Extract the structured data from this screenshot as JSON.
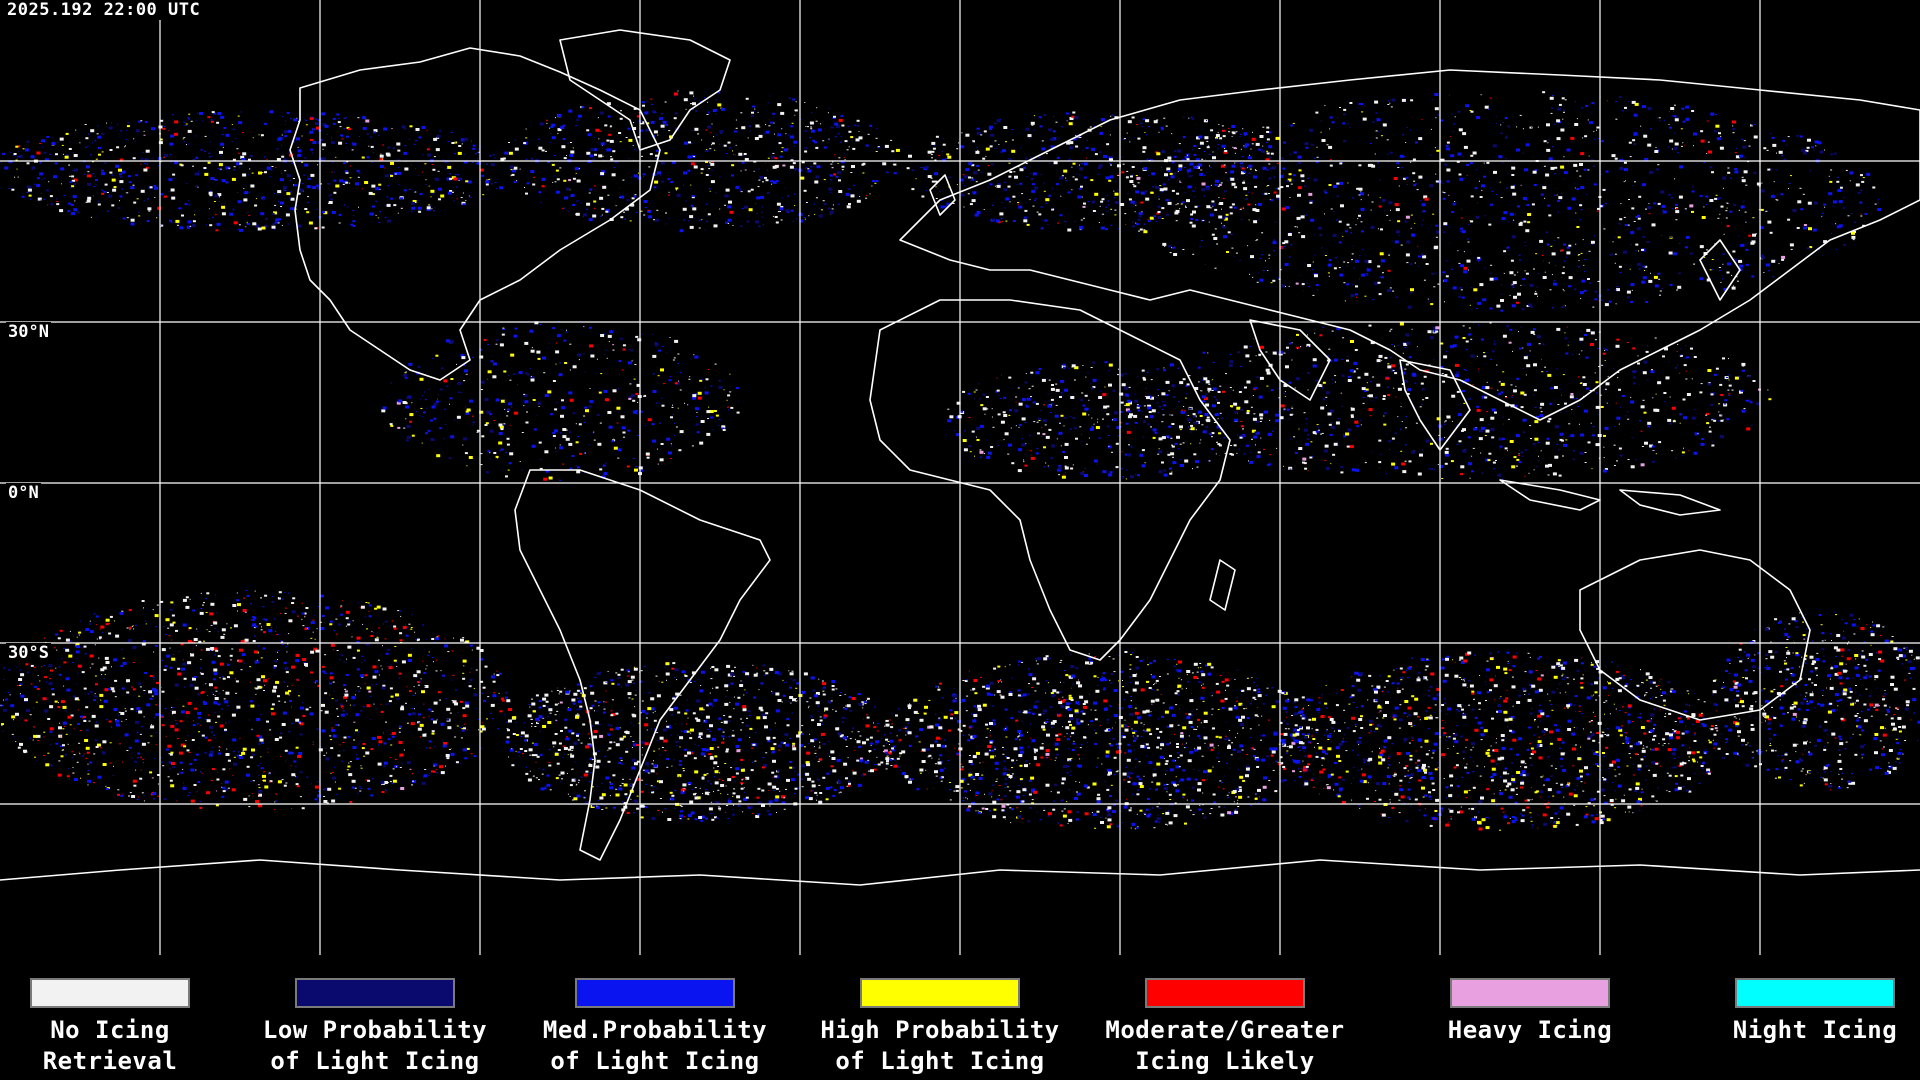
{
  "header": {
    "timestamp": "2025.192 22:00 UTC"
  },
  "latitude_labels": [
    {
      "label": "30°N"
    },
    {
      "label": "0°N"
    },
    {
      "label": "30°S"
    }
  ],
  "legend": {
    "items": [
      {
        "line1": "No Icing",
        "line2": "Retrieval",
        "color": "#f2f2f2"
      },
      {
        "line1": "Low Probability",
        "line2": "of Light Icing",
        "color": "#0a0a6e"
      },
      {
        "line1": "Med.Probability",
        "line2": "of Light Icing",
        "color": "#0a14f0"
      },
      {
        "line1": "High Probability",
        "line2": "of Light Icing",
        "color": "#ffff00"
      },
      {
        "line1": "Moderate/Greater",
        "line2": "Icing Likely",
        "color": "#ff0000"
      },
      {
        "line1": "Heavy Icing",
        "line2": "",
        "color": "#e8a0e0"
      },
      {
        "line1": "Night Icing",
        "line2": "",
        "color": "#00ffff"
      }
    ]
  },
  "colors": {
    "background": "#000000",
    "grid": "#ffffff",
    "coastline": "#ffffff"
  }
}
